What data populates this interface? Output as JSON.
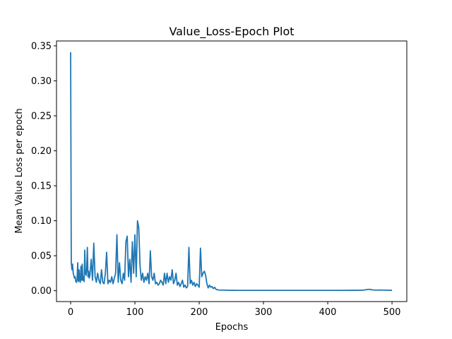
{
  "chart_data": {
    "type": "line",
    "title": "Value_Loss-Epoch Plot",
    "xlabel": "Epochs",
    "ylabel": "Mean Value Loss per epoch",
    "xlim": [
      -22,
      523
    ],
    "ylim": [
      -0.0155,
      0.357
    ],
    "xticks": [
      0,
      100,
      200,
      300,
      400,
      500
    ],
    "xtick_labels": [
      "0",
      "100",
      "200",
      "300",
      "400",
      "500"
    ],
    "yticks": [
      0.0,
      0.05,
      0.1,
      0.15,
      0.2,
      0.25,
      0.3,
      0.35
    ],
    "ytick_labels": [
      "0.00",
      "0.05",
      "0.10",
      "0.15",
      "0.20",
      "0.25",
      "0.30",
      "0.35"
    ],
    "grid": false,
    "legend": "none",
    "series": [
      {
        "color": "#1f77b4",
        "x": [
          0,
          1,
          2,
          3,
          4,
          5,
          6,
          7,
          8,
          9,
          10,
          11,
          12,
          13,
          14,
          15,
          16,
          17,
          18,
          19,
          20,
          21,
          22,
          23,
          24,
          25,
          26,
          27,
          28,
          29,
          30,
          32,
          34,
          36,
          38,
          40,
          42,
          44,
          46,
          48,
          50,
          52,
          54,
          56,
          58,
          60,
          62,
          64,
          66,
          68,
          70,
          72,
          74,
          76,
          78,
          80,
          82,
          84,
          86,
          88,
          90,
          92,
          94,
          96,
          98,
          100,
          102,
          104,
          106,
          108,
          110,
          112,
          114,
          116,
          118,
          120,
          122,
          124,
          126,
          128,
          130,
          132,
          134,
          136,
          138,
          140,
          142,
          144,
          146,
          148,
          150,
          152,
          154,
          156,
          158,
          160,
          162,
          164,
          166,
          168,
          170,
          172,
          174,
          176,
          178,
          180,
          182,
          184,
          186,
          188,
          190,
          192,
          194,
          196,
          198,
          200,
          202,
          204,
          206,
          208,
          210,
          212,
          214,
          216,
          218,
          220,
          222,
          224,
          226,
          228,
          230,
          240,
          250,
          260,
          280,
          300,
          320,
          340,
          360,
          380,
          400,
          420,
          440,
          455,
          460,
          465,
          470,
          475,
          480,
          490,
          500
        ],
        "y": [
          0.341,
          0.04,
          0.03,
          0.038,
          0.025,
          0.022,
          0.018,
          0.02,
          0.013,
          0.012,
          0.016,
          0.04,
          0.013,
          0.03,
          0.015,
          0.012,
          0.035,
          0.015,
          0.038,
          0.015,
          0.02,
          0.013,
          0.058,
          0.025,
          0.022,
          0.03,
          0.062,
          0.02,
          0.028,
          0.018,
          0.022,
          0.045,
          0.015,
          0.068,
          0.02,
          0.012,
          0.025,
          0.015,
          0.01,
          0.03,
          0.012,
          0.01,
          0.025,
          0.055,
          0.01,
          0.015,
          0.012,
          0.02,
          0.01,
          0.018,
          0.025,
          0.08,
          0.012,
          0.04,
          0.015,
          0.01,
          0.025,
          0.015,
          0.07,
          0.078,
          0.02,
          0.045,
          0.012,
          0.07,
          0.025,
          0.08,
          0.02,
          0.1,
          0.09,
          0.035,
          0.015,
          0.025,
          0.012,
          0.02,
          0.015,
          0.025,
          0.01,
          0.057,
          0.02,
          0.015,
          0.025,
          0.01,
          0.012,
          0.008,
          0.01,
          0.015,
          0.012,
          0.008,
          0.025,
          0.01,
          0.025,
          0.012,
          0.02,
          0.015,
          0.03,
          0.01,
          0.015,
          0.025,
          0.008,
          0.012,
          0.006,
          0.01,
          0.015,
          0.005,
          0.008,
          0.004,
          0.006,
          0.062,
          0.01,
          0.015,
          0.008,
          0.012,
          0.006,
          0.01,
          0.008,
          0.005,
          0.061,
          0.02,
          0.025,
          0.028,
          0.022,
          0.01,
          0.004,
          0.008,
          0.005,
          0.006,
          0.003,
          0.005,
          0.002,
          0.0015,
          0.001,
          0.0008,
          0.0006,
          0.0005,
          0.0005,
          0.0005,
          0.0005,
          0.0005,
          0.0005,
          0.0005,
          0.0005,
          0.0005,
          0.0006,
          0.0008,
          0.0015,
          0.002,
          0.0012,
          0.0008,
          0.001,
          0.0008,
          0.0006
        ]
      }
    ]
  }
}
